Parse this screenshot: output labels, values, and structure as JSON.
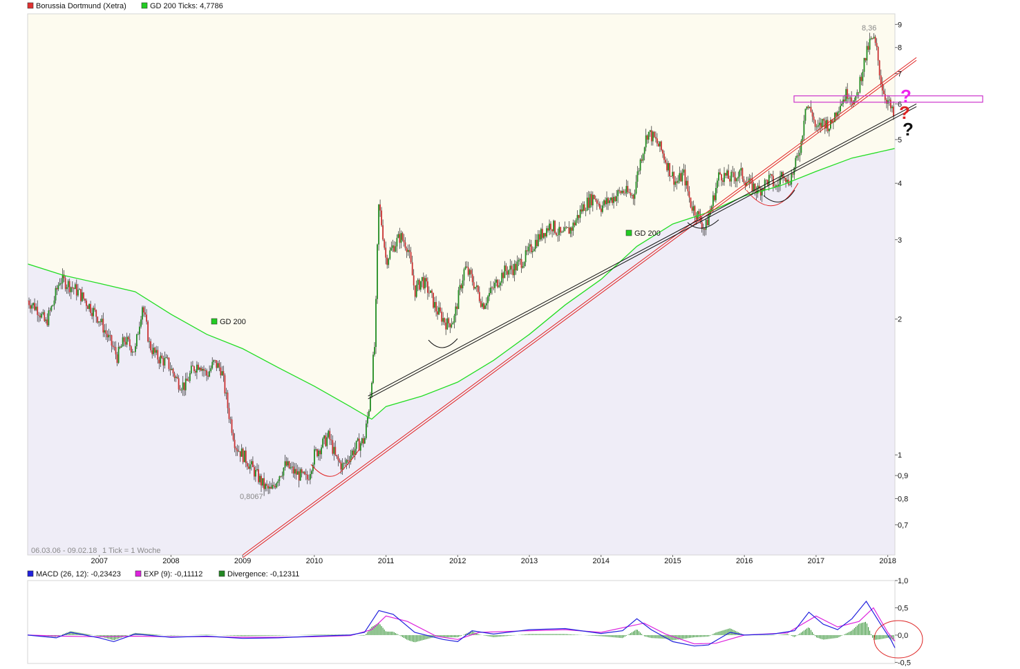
{
  "main_legend": {
    "stock_name": "Borussia Dortmund (Xetra)",
    "stock_color": "#e03030",
    "gd_label": "GD 200 Ticks: 4,7786",
    "gd_color": "#22cc22"
  },
  "macd_legend": {
    "macd_label": "MACD (26, 12): -0,23423",
    "macd_color": "#2020dd",
    "exp_label": "EXP (9): -0,11112",
    "exp_color": "#dd22dd",
    "div_label": "Divergence: -0,12311",
    "div_color": "#228822"
  },
  "info": {
    "range": "06.03.06 - 09.02.18",
    "tick": "1 Tick = 1 Woche"
  },
  "gd_inline_label": "GD 200",
  "annotations": {
    "low_value": "0,8067",
    "high_value": "8,36",
    "question_mark": "?"
  },
  "colors": {
    "upper_fill": "#fdfbef",
    "lower_fill": "#efedf7",
    "gd_line": "#22dd22",
    "trend_red": "#e02020",
    "trend_black": "#111111",
    "candle_up": "#1f8a1f",
    "candle_down": "#c83030",
    "resistance": "#cc33cc"
  },
  "chart_data": {
    "type": "candlestick",
    "price_axis": {
      "scale": "log",
      "range": [
        0.6,
        9.5
      ],
      "tick_labels": [
        "9",
        "8",
        "7",
        "6",
        "5",
        "4",
        "3",
        "2",
        "1",
        "0,9",
        "0,8",
        "0,7"
      ],
      "tick_values": [
        9,
        8,
        7,
        6,
        5,
        4,
        3,
        2,
        1,
        0.9,
        0.8,
        0.7
      ]
    },
    "time_axis": {
      "range": [
        2006.0,
        2018.1
      ],
      "year_labels": [
        "2007",
        "2008",
        "2009",
        "2010",
        "2011",
        "2012",
        "2013",
        "2014",
        "2015",
        "2016",
        "2017",
        "2018"
      ],
      "year_values": [
        2007,
        2008,
        2009,
        2010,
        2011,
        2012,
        2013,
        2014,
        2015,
        2016,
        2017,
        2018
      ]
    },
    "price_series": [
      [
        2006.0,
        2.2
      ],
      [
        2006.15,
        2.1
      ],
      [
        2006.25,
        1.95
      ],
      [
        2006.35,
        2.15
      ],
      [
        2006.45,
        2.45
      ],
      [
        2006.55,
        2.4
      ],
      [
        2006.7,
        2.3
      ],
      [
        2006.85,
        2.15
      ],
      [
        2007.0,
        2.0
      ],
      [
        2007.1,
        1.85
      ],
      [
        2007.25,
        1.65
      ],
      [
        2007.35,
        1.8
      ],
      [
        2007.5,
        1.7
      ],
      [
        2007.6,
        2.15
      ],
      [
        2007.7,
        1.75
      ],
      [
        2007.8,
        1.65
      ],
      [
        2007.95,
        1.6
      ],
      [
        2008.1,
        1.45
      ],
      [
        2008.2,
        1.42
      ],
      [
        2008.3,
        1.55
      ],
      [
        2008.4,
        1.6
      ],
      [
        2008.5,
        1.5
      ],
      [
        2008.6,
        1.6
      ],
      [
        2008.7,
        1.55
      ],
      [
        2008.8,
        1.25
      ],
      [
        2008.9,
        1.05
      ],
      [
        2009.0,
        1.0
      ],
      [
        2009.1,
        0.95
      ],
      [
        2009.2,
        0.9
      ],
      [
        2009.3,
        0.85
      ],
      [
        2009.4,
        0.83
      ],
      [
        2009.5,
        0.9
      ],
      [
        2009.6,
        0.95
      ],
      [
        2009.7,
        0.92
      ],
      [
        2009.8,
        0.9
      ],
      [
        2009.9,
        0.88
      ],
      [
        2010.0,
        1.0
      ],
      [
        2010.1,
        1.05
      ],
      [
        2010.2,
        1.1
      ],
      [
        2010.3,
        0.98
      ],
      [
        2010.4,
        0.94
      ],
      [
        2010.5,
        1.0
      ],
      [
        2010.6,
        1.05
      ],
      [
        2010.7,
        1.08
      ],
      [
        2010.77,
        1.3
      ],
      [
        2010.85,
        1.8
      ],
      [
        2010.9,
        3.6
      ],
      [
        2011.0,
        2.7
      ],
      [
        2011.1,
        2.9
      ],
      [
        2011.2,
        3.05
      ],
      [
        2011.3,
        2.9
      ],
      [
        2011.4,
        2.3
      ],
      [
        2011.5,
        2.45
      ],
      [
        2011.6,
        2.3
      ],
      [
        2011.7,
        2.1
      ],
      [
        2011.85,
        1.95
      ],
      [
        2011.95,
        2.0
      ],
      [
        2012.1,
        2.6
      ],
      [
        2012.2,
        2.45
      ],
      [
        2012.35,
        2.15
      ],
      [
        2012.5,
        2.35
      ],
      [
        2012.65,
        2.55
      ],
      [
        2012.8,
        2.6
      ],
      [
        2012.95,
        2.75
      ],
      [
        2013.1,
        3.0
      ],
      [
        2013.3,
        3.25
      ],
      [
        2013.45,
        3.05
      ],
      [
        2013.6,
        3.2
      ],
      [
        2013.75,
        3.55
      ],
      [
        2013.9,
        3.75
      ],
      [
        2014.0,
        3.55
      ],
      [
        2014.15,
        3.7
      ],
      [
        2014.3,
        3.85
      ],
      [
        2014.45,
        3.75
      ],
      [
        2014.55,
        4.5
      ],
      [
        2014.65,
        5.2
      ],
      [
        2014.75,
        5.0
      ],
      [
        2014.85,
        4.7
      ],
      [
        2014.95,
        4.3
      ],
      [
        2015.05,
        4.0
      ],
      [
        2015.15,
        4.2
      ],
      [
        2015.25,
        3.6
      ],
      [
        2015.35,
        3.4
      ],
      [
        2015.45,
        3.15
      ],
      [
        2015.55,
        3.6
      ],
      [
        2015.65,
        4.2
      ],
      [
        2015.8,
        4.1
      ],
      [
        2015.95,
        4.2
      ],
      [
        2016.05,
        4.0
      ],
      [
        2016.2,
        3.85
      ],
      [
        2016.35,
        4.1
      ],
      [
        2016.45,
        3.9
      ],
      [
        2016.55,
        4.3
      ],
      [
        2016.6,
        4.0
      ],
      [
        2016.7,
        4.3
      ],
      [
        2016.8,
        5.0
      ],
      [
        2016.85,
        6.0
      ],
      [
        2016.95,
        5.7
      ],
      [
        2017.0,
        5.2
      ],
      [
        2017.1,
        5.5
      ],
      [
        2017.2,
        5.35
      ],
      [
        2017.3,
        5.9
      ],
      [
        2017.45,
        6.4
      ],
      [
        2017.55,
        6.0
      ],
      [
        2017.65,
        7.2
      ],
      [
        2017.75,
        8.2
      ],
      [
        2017.8,
        8.36
      ],
      [
        2017.85,
        7.8
      ],
      [
        2017.9,
        6.8
      ],
      [
        2017.95,
        6.3
      ],
      [
        2018.0,
        6.1
      ],
      [
        2018.05,
        5.8
      ],
      [
        2018.1,
        5.5
      ]
    ],
    "gd200_series": [
      [
        2006.0,
        2.65
      ],
      [
        2006.5,
        2.5
      ],
      [
        2007.0,
        2.4
      ],
      [
        2007.5,
        2.3
      ],
      [
        2008.0,
        2.05
      ],
      [
        2008.5,
        1.85
      ],
      [
        2009.0,
        1.72
      ],
      [
        2009.5,
        1.56
      ],
      [
        2010.0,
        1.42
      ],
      [
        2010.5,
        1.28
      ],
      [
        2010.8,
        1.2
      ],
      [
        2011.0,
        1.28
      ],
      [
        2011.5,
        1.35
      ],
      [
        2012.0,
        1.45
      ],
      [
        2012.5,
        1.62
      ],
      [
        2013.0,
        1.85
      ],
      [
        2013.5,
        2.15
      ],
      [
        2014.0,
        2.45
      ],
      [
        2014.5,
        2.9
      ],
      [
        2015.0,
        3.25
      ],
      [
        2015.5,
        3.45
      ],
      [
        2016.0,
        3.75
      ],
      [
        2016.5,
        3.95
      ],
      [
        2017.0,
        4.25
      ],
      [
        2017.5,
        4.55
      ],
      [
        2018.1,
        4.7786
      ]
    ],
    "macd_axis": {
      "range": [
        -0.52,
        1.0
      ],
      "tick_labels": [
        "1,0",
        "0,5",
        "0,0",
        "-0,5"
      ],
      "tick_values": [
        1.0,
        0.5,
        0.0,
        -0.5
      ]
    },
    "macd_series": [
      [
        2006.0,
        0.0
      ],
      [
        2006.4,
        -0.05
      ],
      [
        2006.6,
        0.05
      ],
      [
        2007.0,
        -0.05
      ],
      [
        2007.2,
        -0.12
      ],
      [
        2007.5,
        0.02
      ],
      [
        2008.0,
        -0.04
      ],
      [
        2008.5,
        -0.02
      ],
      [
        2009.0,
        -0.06
      ],
      [
        2009.5,
        -0.05
      ],
      [
        2010.0,
        -0.02
      ],
      [
        2010.5,
        0.0
      ],
      [
        2010.7,
        0.05
      ],
      [
        2010.9,
        0.45
      ],
      [
        2011.1,
        0.38
      ],
      [
        2011.4,
        0.05
      ],
      [
        2011.8,
        -0.08
      ],
      [
        2012.0,
        -0.12
      ],
      [
        2012.2,
        0.08
      ],
      [
        2012.5,
        0.02
      ],
      [
        2013.0,
        0.1
      ],
      [
        2013.5,
        0.12
      ],
      [
        2014.0,
        0.03
      ],
      [
        2014.3,
        0.08
      ],
      [
        2014.5,
        0.3
      ],
      [
        2014.7,
        0.1
      ],
      [
        2015.0,
        -0.12
      ],
      [
        2015.3,
        -0.2
      ],
      [
        2015.5,
        -0.18
      ],
      [
        2015.8,
        0.05
      ],
      [
        2016.0,
        0.0
      ],
      [
        2016.4,
        0.02
      ],
      [
        2016.7,
        0.08
      ],
      [
        2016.9,
        0.42
      ],
      [
        2017.1,
        0.2
      ],
      [
        2017.3,
        0.1
      ],
      [
        2017.5,
        0.3
      ],
      [
        2017.7,
        0.62
      ],
      [
        2017.9,
        0.2
      ],
      [
        2018.05,
        -0.1
      ],
      [
        2018.1,
        -0.23423
      ]
    ],
    "exp_series": [
      [
        2006.0,
        0.0
      ],
      [
        2006.5,
        -0.02
      ],
      [
        2007.0,
        -0.03
      ],
      [
        2007.5,
        -0.02
      ],
      [
        2008.0,
        -0.03
      ],
      [
        2008.5,
        -0.03
      ],
      [
        2009.0,
        -0.04
      ],
      [
        2009.5,
        -0.04
      ],
      [
        2010.0,
        -0.03
      ],
      [
        2010.5,
        -0.01
      ],
      [
        2010.8,
        0.1
      ],
      [
        2011.0,
        0.35
      ],
      [
        2011.3,
        0.25
      ],
      [
        2011.7,
        -0.02
      ],
      [
        2012.0,
        -0.08
      ],
      [
        2012.3,
        0.05
      ],
      [
        2013.0,
        0.08
      ],
      [
        2013.5,
        0.1
      ],
      [
        2014.0,
        0.05
      ],
      [
        2014.6,
        0.22
      ],
      [
        2014.9,
        0.02
      ],
      [
        2015.3,
        -0.16
      ],
      [
        2015.6,
        -0.15
      ],
      [
        2016.0,
        0.0
      ],
      [
        2016.6,
        0.04
      ],
      [
        2017.0,
        0.35
      ],
      [
        2017.3,
        0.15
      ],
      [
        2017.6,
        0.25
      ],
      [
        2017.8,
        0.5
      ],
      [
        2018.0,
        0.05
      ],
      [
        2018.1,
        -0.11112
      ]
    ],
    "trend_lines": {
      "red": [
        [
          2009.0,
          0.6
        ],
        [
          2018.4,
          7.6
        ]
      ],
      "black": [
        [
          2010.75,
          1.35
        ],
        [
          2018.4,
          6.0
        ]
      ],
      "resistance_band": [
        6.05,
        6.25
      ]
    }
  }
}
